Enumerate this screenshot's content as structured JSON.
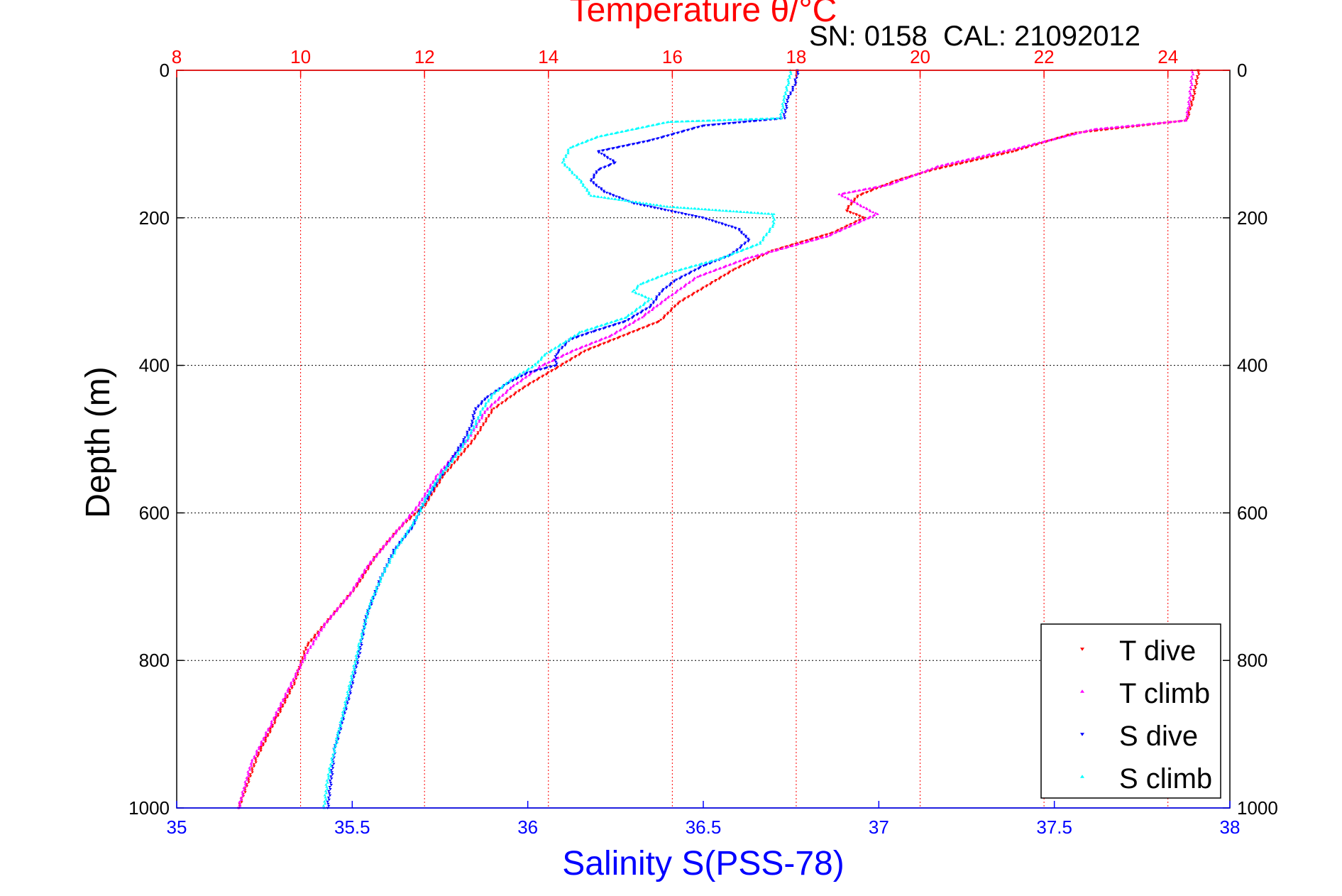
{
  "chart_data": {
    "type": "scatter",
    "top_axis": {
      "label": "Temperature θ/°C",
      "range": [
        8,
        25
      ],
      "ticks": [
        "8",
        "10",
        "12",
        "14",
        "16",
        "18",
        "20",
        "22",
        "24"
      ],
      "color": "#ff0000"
    },
    "bottom_axis": {
      "label": "Salinity S(PSS-78)",
      "range": [
        35,
        38
      ],
      "ticks": [
        "35",
        "35.5",
        "36",
        "36.5",
        "37",
        "37.5",
        "38"
      ],
      "color": "#0000ff"
    },
    "y_axis": {
      "label": "Depth (m)",
      "range": [
        0,
        1000
      ],
      "reversed": true,
      "ticks": [
        "0",
        "200",
        "400",
        "600",
        "800",
        "1000"
      ]
    },
    "annotation": "SN: 0158  CAL: 21092012",
    "grid": true,
    "legend_position": "bottom-right",
    "series": [
      {
        "name": "T dive",
        "axis": "temperature",
        "color": "#ff0000",
        "marker": "down-triangle",
        "points": [
          [
            24.5,
            0
          ],
          [
            24.4,
            40
          ],
          [
            24.3,
            68
          ],
          [
            22.5,
            85
          ],
          [
            21.5,
            110
          ],
          [
            20.2,
            135
          ],
          [
            19.6,
            150
          ],
          [
            19.0,
            170
          ],
          [
            18.8,
            190
          ],
          [
            19.1,
            200
          ],
          [
            18.6,
            220
          ],
          [
            17.6,
            245
          ],
          [
            17.0,
            270
          ],
          [
            16.6,
            290
          ],
          [
            16.1,
            315
          ],
          [
            15.8,
            340
          ],
          [
            15.2,
            360
          ],
          [
            14.6,
            380
          ],
          [
            14.1,
            405
          ],
          [
            13.6,
            430
          ],
          [
            13.1,
            460
          ],
          [
            12.8,
            500
          ],
          [
            12.3,
            550
          ],
          [
            12.0,
            590
          ],
          [
            11.6,
            620
          ],
          [
            11.2,
            660
          ],
          [
            10.9,
            700
          ],
          [
            10.5,
            740
          ],
          [
            10.1,
            780
          ],
          [
            9.9,
            830
          ],
          [
            9.6,
            880
          ],
          [
            9.3,
            930
          ],
          [
            9.0,
            1000
          ]
        ]
      },
      {
        "name": "T climb",
        "axis": "temperature",
        "color": "#ff00ff",
        "marker": "up-triangle",
        "points": [
          [
            24.4,
            0
          ],
          [
            24.35,
            40
          ],
          [
            24.3,
            68
          ],
          [
            22.8,
            80
          ],
          [
            21.6,
            105
          ],
          [
            20.3,
            130
          ],
          [
            19.5,
            155
          ],
          [
            18.7,
            168
          ],
          [
            19.3,
            195
          ],
          [
            18.5,
            225
          ],
          [
            17.2,
            255
          ],
          [
            16.4,
            280
          ],
          [
            15.9,
            310
          ],
          [
            15.5,
            335
          ],
          [
            15.0,
            360
          ],
          [
            14.4,
            380
          ],
          [
            13.9,
            400
          ],
          [
            13.4,
            430
          ],
          [
            13.0,
            460
          ],
          [
            12.7,
            500
          ],
          [
            12.2,
            550
          ],
          [
            11.9,
            590
          ],
          [
            11.5,
            630
          ],
          [
            11.1,
            670
          ],
          [
            10.8,
            710
          ],
          [
            10.4,
            750
          ],
          [
            10.1,
            790
          ],
          [
            9.8,
            840
          ],
          [
            9.5,
            890
          ],
          [
            9.2,
            940
          ],
          [
            9.0,
            1000
          ]
        ]
      },
      {
        "name": "S dive",
        "axis": "salinity",
        "color": "#0000ff",
        "marker": "down-triangle",
        "points": [
          [
            36.77,
            0
          ],
          [
            36.76,
            20
          ],
          [
            36.74,
            40
          ],
          [
            36.73,
            65
          ],
          [
            36.5,
            75
          ],
          [
            36.35,
            95
          ],
          [
            36.2,
            110
          ],
          [
            36.25,
            125
          ],
          [
            36.2,
            135
          ],
          [
            36.18,
            150
          ],
          [
            36.22,
            165
          ],
          [
            36.3,
            180
          ],
          [
            36.5,
            200
          ],
          [
            36.6,
            215
          ],
          [
            36.63,
            230
          ],
          [
            36.58,
            250
          ],
          [
            36.5,
            265
          ],
          [
            36.42,
            285
          ],
          [
            36.38,
            300
          ],
          [
            36.35,
            320
          ],
          [
            36.28,
            340
          ],
          [
            36.18,
            355
          ],
          [
            36.12,
            365
          ],
          [
            36.08,
            385
          ],
          [
            36.08,
            400
          ],
          [
            36.0,
            410
          ],
          [
            35.94,
            425
          ],
          [
            35.88,
            445
          ],
          [
            35.85,
            460
          ],
          [
            35.84,
            480
          ],
          [
            35.82,
            500
          ],
          [
            35.78,
            530
          ],
          [
            35.74,
            560
          ],
          [
            35.7,
            590
          ],
          [
            35.67,
            620
          ],
          [
            35.62,
            650
          ],
          [
            35.58,
            690
          ],
          [
            35.54,
            740
          ],
          [
            35.52,
            790
          ],
          [
            35.49,
            850
          ],
          [
            35.45,
            920
          ],
          [
            35.43,
            1000
          ]
        ]
      },
      {
        "name": "S climb",
        "axis": "salinity",
        "color": "#00ffff",
        "marker": "up-triangle",
        "points": [
          [
            36.75,
            0
          ],
          [
            36.74,
            20
          ],
          [
            36.73,
            40
          ],
          [
            36.72,
            65
          ],
          [
            36.4,
            70
          ],
          [
            36.2,
            90
          ],
          [
            36.12,
            105
          ],
          [
            36.1,
            125
          ],
          [
            36.15,
            150
          ],
          [
            36.18,
            170
          ],
          [
            36.4,
            185
          ],
          [
            36.7,
            195
          ],
          [
            36.7,
            210
          ],
          [
            36.66,
            235
          ],
          [
            36.55,
            255
          ],
          [
            36.4,
            275
          ],
          [
            36.32,
            290
          ],
          [
            36.3,
            300
          ],
          [
            36.35,
            310
          ],
          [
            36.28,
            335
          ],
          [
            36.15,
            355
          ],
          [
            36.1,
            370
          ],
          [
            36.05,
            385
          ],
          [
            36.02,
            400
          ],
          [
            35.95,
            420
          ],
          [
            35.9,
            440
          ],
          [
            35.87,
            460
          ],
          [
            35.84,
            490
          ],
          [
            35.8,
            520
          ],
          [
            35.75,
            550
          ],
          [
            35.71,
            580
          ],
          [
            35.68,
            610
          ],
          [
            35.63,
            645
          ],
          [
            35.59,
            680
          ],
          [
            35.55,
            725
          ],
          [
            35.52,
            780
          ],
          [
            35.49,
            840
          ],
          [
            35.46,
            900
          ],
          [
            35.43,
            960
          ],
          [
            35.42,
            1000
          ]
        ]
      }
    ]
  }
}
